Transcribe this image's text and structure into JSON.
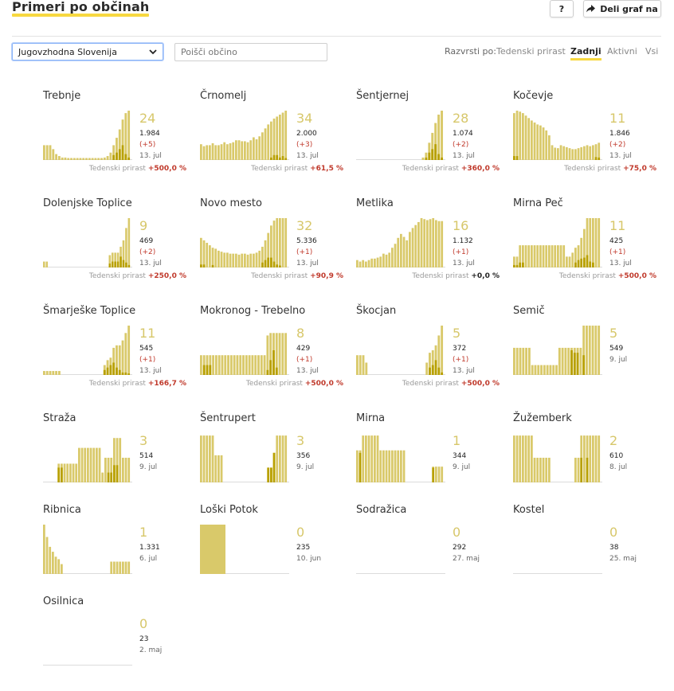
{
  "header": {
    "title": "Primeri po občinah",
    "help_label": "?",
    "share_label": "Deli graf na"
  },
  "controls": {
    "region_selected": "Jugovzhodna Slovenija",
    "search_placeholder": "Poišči občino",
    "sort_label": "Razvrsti po:",
    "sort_options": [
      "Tedenski prirast",
      "Zadnji",
      "Aktivni",
      "Vsi"
    ],
    "sort_active": "Zadnji"
  },
  "colors": {
    "accent": "#f7d840",
    "bar": "#d9c96a",
    "bar_dark": "#b8a000",
    "positive": "#c0392b"
  },
  "weekly_label": "Tedenski prirast",
  "municipalities": [
    {
      "name": "Trebnje",
      "active": "24",
      "total": "1.984",
      "delta": "(+5)",
      "date": "13. jul",
      "weekly": "+500,0 %",
      "bars": [
        0.3,
        0.3,
        0.3,
        0.22,
        0.12,
        0.08,
        0.05,
        0.05,
        0.04,
        0.04,
        0.04,
        0.04,
        0.04,
        0.04,
        0.04,
        0.04,
        0.04,
        0.04,
        0.04,
        0.04,
        0.05,
        0.08,
        0.15,
        0.3,
        0.45,
        0.62,
        0.82,
        0.95,
        1.0
      ],
      "dark": [
        0,
        0,
        0,
        0,
        0,
        0,
        0,
        0,
        0,
        0,
        0,
        0,
        0,
        0,
        0,
        0,
        0,
        0,
        0,
        0,
        0,
        0,
        0,
        0.1,
        0.15,
        0.22,
        0.3,
        0.12,
        0.05
      ]
    },
    {
      "name": "Črnomelj",
      "active": "34",
      "total": "2.000",
      "delta": "(+3)",
      "date": "13. jul",
      "weekly": "+61,5 %",
      "bars": [
        0.32,
        0.28,
        0.3,
        0.3,
        0.34,
        0.3,
        0.3,
        0.32,
        0.36,
        0.32,
        0.34,
        0.36,
        0.4,
        0.4,
        0.38,
        0.38,
        0.36,
        0.4,
        0.46,
        0.42,
        0.48,
        0.56,
        0.64,
        0.72,
        0.78,
        0.84,
        0.88,
        0.92,
        0.96,
        1.0
      ],
      "dark": [
        0,
        0,
        0,
        0,
        0,
        0,
        0,
        0,
        0,
        0,
        0,
        0,
        0,
        0,
        0,
        0,
        0,
        0,
        0,
        0,
        0,
        0,
        0,
        0,
        0.05,
        0.1,
        0.1,
        0.05,
        0.08,
        0.04
      ]
    },
    {
      "name": "Šentjernej",
      "active": "28",
      "total": "1.074",
      "delta": "(+2)",
      "date": "13. jul",
      "weekly": "+360,0 %",
      "bars": [
        0,
        0,
        0,
        0,
        0,
        0,
        0,
        0,
        0,
        0,
        0,
        0,
        0,
        0,
        0,
        0,
        0,
        0,
        0,
        0,
        0,
        0.05,
        0.15,
        0.35,
        0.55,
        0.75,
        0.92,
        1.0
      ],
      "dark": [
        0,
        0,
        0,
        0,
        0,
        0,
        0,
        0,
        0,
        0,
        0,
        0,
        0,
        0,
        0,
        0,
        0,
        0,
        0,
        0,
        0,
        0,
        0.05,
        0.15,
        0.22,
        0.32,
        0.12,
        0.05
      ]
    },
    {
      "name": "Kočevje",
      "active": "11",
      "total": "1.846",
      "delta": "(+2)",
      "date": "13. jul",
      "weekly": "+75,0 %",
      "bars": [
        0.95,
        1.0,
        0.98,
        0.95,
        0.9,
        0.85,
        0.8,
        0.76,
        0.72,
        0.7,
        0.66,
        0.6,
        0.5,
        0.3,
        0.25,
        0.24,
        0.3,
        0.28,
        0.26,
        0.24,
        0.22,
        0.22,
        0.24,
        0.26,
        0.28,
        0.3,
        0.28,
        0.3,
        0.32,
        0.35
      ],
      "dark": [
        0.08,
        0.08,
        0,
        0,
        0,
        0,
        0,
        0,
        0,
        0,
        0,
        0,
        0,
        0,
        0,
        0,
        0,
        0,
        0,
        0,
        0,
        0,
        0,
        0,
        0,
        0,
        0,
        0,
        0.06,
        0.05
      ]
    },
    {
      "name": "Dolenjske Toplice",
      "active": "9",
      "total": "469",
      "delta": "(+2)",
      "date": "13. jul",
      "weekly": "+250,0 %",
      "bars": [
        0.12,
        0.12,
        0,
        0,
        0,
        0,
        0,
        0,
        0,
        0,
        0,
        0,
        0,
        0,
        0,
        0,
        0,
        0,
        0,
        0,
        0,
        0,
        0,
        0,
        0.25,
        0.3,
        0.3,
        0.3,
        0.42,
        0.55,
        0.8,
        1.0
      ],
      "dark": [
        0,
        0,
        0,
        0,
        0,
        0,
        0,
        0,
        0,
        0,
        0,
        0,
        0,
        0,
        0,
        0,
        0,
        0,
        0,
        0,
        0,
        0,
        0,
        0,
        0.08,
        0.12,
        0.12,
        0.12,
        0.22,
        0.15,
        0.1,
        0.05
      ]
    },
    {
      "name": "Novo mesto",
      "active": "32",
      "total": "5.336",
      "delta": "(+1)",
      "date": "13. jul",
      "weekly": "+90,9 %",
      "bars": [
        0.6,
        0.55,
        0.5,
        0.45,
        0.4,
        0.38,
        0.34,
        0.32,
        0.3,
        0.3,
        0.28,
        0.28,
        0.28,
        0.26,
        0.28,
        0.28,
        0.26,
        0.28,
        0.28,
        0.3,
        0.34,
        0.42,
        0.55,
        0.7,
        0.85,
        0.95,
        1.0,
        1.0,
        1.0,
        1.0
      ],
      "dark": [
        0.06,
        0.06,
        0,
        0,
        0.05,
        0,
        0,
        0,
        0,
        0,
        0,
        0,
        0,
        0,
        0,
        0,
        0,
        0,
        0,
        0,
        0,
        0.1,
        0.15,
        0.2,
        0.2,
        0.12,
        0.06,
        0.04,
        0,
        0
      ]
    },
    {
      "name": "Metlika",
      "active": "16",
      "total": "1.132",
      "delta": "(+1)",
      "date": "13. jul",
      "weekly": "+0,0 %",
      "weekly_zero": true,
      "bars": [
        0.15,
        0.12,
        0.15,
        0.12,
        0.15,
        0.18,
        0.18,
        0.2,
        0.22,
        0.28,
        0.26,
        0.3,
        0.4,
        0.48,
        0.6,
        0.68,
        0.62,
        0.55,
        0.72,
        0.8,
        0.86,
        0.92,
        1.0,
        0.98,
        0.96,
        0.98,
        1.0,
        0.96,
        0.94,
        0.94
      ],
      "dark": [
        0,
        0,
        0,
        0,
        0,
        0,
        0,
        0,
        0,
        0,
        0,
        0,
        0,
        0,
        0,
        0,
        0,
        0,
        0,
        0,
        0,
        0,
        0,
        0,
        0,
        0,
        0,
        0,
        0,
        0
      ]
    },
    {
      "name": "Mirna Peč",
      "active": "11",
      "total": "425",
      "delta": "(+1)",
      "date": "13. jul",
      "weekly": "+500,0 %",
      "bars": [
        0.22,
        0.22,
        0.45,
        0.45,
        0.45,
        0.45,
        0.45,
        0.45,
        0.45,
        0.45,
        0.45,
        0.45,
        0.45,
        0.45,
        0.45,
        0.45,
        0.45,
        0.45,
        0.22,
        0.22,
        0.3,
        0.4,
        0.45,
        0.6,
        0.78,
        1.0,
        1.0,
        1.0,
        1.0,
        1.0
      ],
      "dark": [
        0.05,
        0.05,
        0.1,
        0.1,
        0,
        0,
        0,
        0,
        0,
        0,
        0,
        0,
        0,
        0,
        0,
        0,
        0,
        0,
        0,
        0,
        0,
        0.1,
        0.15,
        0.18,
        0.2,
        0.25,
        0.12,
        0.1,
        0,
        0
      ]
    },
    {
      "name": "Šmarješke Toplice",
      "active": "11",
      "total": "545",
      "delta": "(+1)",
      "date": "13. jul",
      "weekly": "+166,7 %",
      "bars": [
        0.08,
        0.08,
        0.08,
        0.08,
        0.08,
        0.08,
        0,
        0,
        0,
        0,
        0,
        0,
        0,
        0,
        0,
        0,
        0,
        0,
        0,
        0,
        0.2,
        0.3,
        0.35,
        0.55,
        0.6,
        0.6,
        0.7,
        0.85,
        1.0
      ],
      "dark": [
        0,
        0,
        0,
        0,
        0,
        0,
        0,
        0,
        0,
        0,
        0,
        0,
        0,
        0,
        0,
        0,
        0,
        0,
        0,
        0,
        0.1,
        0.15,
        0.2,
        0.25,
        0.15,
        0.1,
        0.05,
        0.05,
        0.03
      ]
    },
    {
      "name": "Mokronog - Trebelno",
      "active": "8",
      "total": "429",
      "delta": "(+1)",
      "date": "13. jul",
      "weekly": "+500,0 %",
      "bars": [
        0.4,
        0.4,
        0.4,
        0.4,
        0.4,
        0.4,
        0.4,
        0.4,
        0.4,
        0.4,
        0.4,
        0.4,
        0.4,
        0.4,
        0.4,
        0.4,
        0.4,
        0.4,
        0.4,
        0.4,
        0.4,
        0.4,
        0.8,
        0.85,
        0.85,
        0.85,
        0.85,
        0.85,
        0.85
      ],
      "dark": [
        0,
        0.2,
        0.2,
        0.2,
        0,
        0,
        0,
        0,
        0,
        0,
        0,
        0,
        0,
        0,
        0,
        0,
        0,
        0,
        0,
        0,
        0,
        0,
        0.1,
        0.3,
        0.5,
        0.15,
        0,
        0,
        0
      ]
    },
    {
      "name": "Škocjan",
      "active": "5",
      "total": "372",
      "delta": "(+1)",
      "date": "13. jul",
      "weekly": "+500,0 %",
      "bars": [
        0.4,
        0.4,
        0.4,
        0.25,
        0,
        0,
        0,
        0,
        0,
        0,
        0,
        0,
        0,
        0,
        0,
        0,
        0,
        0,
        0,
        0,
        0,
        0,
        0,
        0.25,
        0.45,
        0.5,
        0.6,
        0.8,
        1.0
      ],
      "dark": [
        0,
        0,
        0,
        0,
        0,
        0,
        0,
        0,
        0,
        0,
        0,
        0,
        0,
        0,
        0,
        0,
        0,
        0,
        0,
        0,
        0,
        0,
        0,
        0,
        0.15,
        0.2,
        0.3,
        0.15,
        0.05
      ]
    },
    {
      "name": "Semič",
      "active": "5",
      "total": "549",
      "date": "9. jul",
      "weekly": "",
      "bars": [
        0.55,
        0.55,
        0.55,
        0.55,
        0.55,
        0.55,
        0.2,
        0.2,
        0.2,
        0.2,
        0.2,
        0.2,
        0.2,
        0.2,
        0.2,
        0.55,
        0.55,
        0.55,
        0.55,
        0.55,
        0.55,
        0.55,
        0.55,
        1.0,
        1.0,
        1.0,
        1.0,
        1.0,
        1.0
      ],
      "dark": [
        0,
        0,
        0,
        0,
        0,
        0,
        0,
        0,
        0,
        0,
        0,
        0,
        0,
        0,
        0,
        0,
        0,
        0,
        0,
        0.5,
        0.45,
        0.45,
        0,
        0.4,
        0,
        0,
        0,
        0,
        0
      ]
    },
    {
      "name": "Straža",
      "active": "3",
      "total": "514",
      "date": "9. jul",
      "weekly": "",
      "bars": [
        0,
        0,
        0,
        0,
        0,
        0.38,
        0.38,
        0.38,
        0.38,
        0.38,
        0.38,
        0.38,
        0.7,
        0.7,
        0.7,
        0.7,
        0.7,
        0.7,
        0.7,
        0.7,
        0.2,
        0.5,
        0.5,
        0.5,
        0.9,
        0.9,
        0.9,
        0.5,
        0.5,
        0.5
      ],
      "dark": [
        0,
        0,
        0,
        0,
        0,
        0.3,
        0.3,
        0,
        0,
        0,
        0,
        0,
        0,
        0,
        0,
        0,
        0,
        0,
        0,
        0,
        0,
        0,
        0.2,
        0.2,
        0.35,
        0.35,
        0,
        0,
        0,
        0
      ]
    },
    {
      "name": "Šentrupert",
      "active": "3",
      "total": "356",
      "date": "9. jul",
      "weekly": "",
      "bars": [
        0.95,
        0.95,
        0.95,
        0.95,
        0.95,
        0.55,
        0.55,
        0.55,
        0,
        0,
        0,
        0,
        0,
        0,
        0,
        0,
        0,
        0,
        0,
        0,
        0,
        0,
        0,
        0.3,
        0.3,
        0.6,
        0.95,
        0.95,
        0.95,
        0.95
      ],
      "dark": [
        0,
        0,
        0,
        0,
        0,
        0,
        0,
        0,
        0,
        0,
        0,
        0,
        0,
        0,
        0,
        0,
        0,
        0,
        0,
        0,
        0,
        0,
        0,
        0.3,
        0.3,
        0.6,
        0,
        0,
        0,
        0
      ]
    },
    {
      "name": "Mirna",
      "active": "1",
      "total": "344",
      "date": "9. jul",
      "weekly": "",
      "bars": [
        0.65,
        0.65,
        0.95,
        0.95,
        0.95,
        0.95,
        0.95,
        0.95,
        0.65,
        0.65,
        0.65,
        0.65,
        0.65,
        0.65,
        0.65,
        0.65,
        0.65,
        0,
        0,
        0,
        0,
        0,
        0,
        0,
        0,
        0,
        0.32,
        0.32,
        0.32,
        0.32
      ],
      "dark": [
        0,
        0.6,
        0,
        0,
        0,
        0,
        0,
        0,
        0,
        0,
        0,
        0,
        0,
        0,
        0,
        0,
        0,
        0,
        0,
        0,
        0,
        0,
        0,
        0,
        0,
        0,
        0.3,
        0,
        0,
        0
      ]
    },
    {
      "name": "Žužemberk",
      "active": "2",
      "total": "610",
      "date": "8. jul",
      "weekly": "",
      "bars": [
        0.95,
        0.95,
        0.95,
        0.95,
        0.95,
        0.95,
        0.95,
        0.5,
        0.5,
        0.5,
        0.5,
        0.5,
        0.5,
        0,
        0,
        0,
        0,
        0,
        0,
        0,
        0,
        0.5,
        0.5,
        0.95,
        0.95,
        0.95,
        0.95,
        0.95,
        0.95,
        0.95
      ],
      "dark": [
        0,
        0,
        0,
        0,
        0,
        0,
        0,
        0,
        0,
        0,
        0,
        0,
        0,
        0,
        0,
        0,
        0,
        0,
        0,
        0,
        0,
        0,
        0,
        0.5,
        0,
        0.5,
        0,
        0,
        0,
        0
      ]
    },
    {
      "name": "Ribnica",
      "active": "1",
      "total": "1.331",
      "date": "6. jul",
      "weekly": "",
      "bars": [
        1.0,
        0.75,
        0.55,
        0.45,
        0.35,
        0.3,
        0.2,
        0,
        0,
        0,
        0,
        0,
        0,
        0,
        0,
        0,
        0,
        0,
        0,
        0,
        0,
        0,
        0,
        0.25,
        0.25,
        0.25,
        0.25,
        0.25,
        0.25,
        0.25
      ],
      "dark": [
        0,
        0,
        0,
        0,
        0,
        0,
        0,
        0,
        0,
        0,
        0,
        0,
        0,
        0,
        0,
        0,
        0,
        0,
        0,
        0,
        0,
        0,
        0,
        0,
        0,
        0,
        0,
        0,
        0,
        0
      ]
    },
    {
      "name": "Loški Potok",
      "active": "0",
      "total": "235",
      "date": "10. jun",
      "weekly": "",
      "bars": [
        1.0,
        1.0,
        1.0,
        1.0,
        1.0,
        1.0,
        1.0,
        1.0
      ],
      "dark": [
        0,
        0,
        0,
        0,
        0,
        0,
        0,
        0
      ],
      "solid": true
    },
    {
      "name": "Sodražica",
      "active": "0",
      "total": "292",
      "date": "27. maj",
      "weekly": "",
      "bars": [],
      "dark": []
    },
    {
      "name": "Kostel",
      "active": "0",
      "total": "38",
      "date": "25. maj",
      "weekly": "",
      "bars": [],
      "dark": []
    },
    {
      "name": "Osilnica",
      "active": "0",
      "total": "23",
      "date": "2. maj",
      "weekly": "",
      "bars": [],
      "dark": []
    }
  ]
}
